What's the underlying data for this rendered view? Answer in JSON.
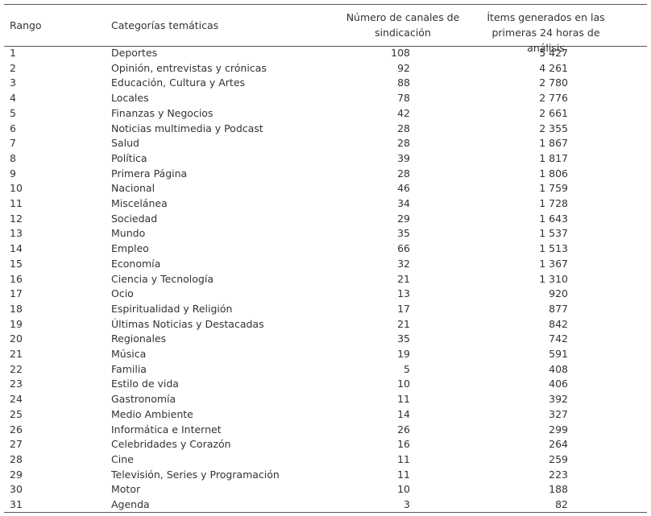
{
  "table": {
    "header": [
      "Rango",
      "Categorías temáticas",
      "Número de canales de sindicación",
      "Ítems generados en las primeras 24 horas de análisis"
    ],
    "rows": [
      [
        "1",
        "Deportes",
        "108",
        "5 427"
      ],
      [
        "2",
        "Opinión, entrevistas y crónicas",
        "92",
        "4 261"
      ],
      [
        "3",
        "Educación, Cultura y Artes",
        "88",
        "2 780"
      ],
      [
        "4",
        "Locales",
        "78",
        "2 776"
      ],
      [
        "5",
        "Finanzas y Negocios",
        "42",
        "2 661"
      ],
      [
        "6",
        "Noticias multimedia y Podcast",
        "28",
        "2 355"
      ],
      [
        "7",
        "Salud",
        "28",
        "1 867"
      ],
      [
        "8",
        "Política",
        "39",
        "1 817"
      ],
      [
        "9",
        "Primera Página",
        "28",
        "1 806"
      ],
      [
        "10",
        "Nacional",
        "46",
        "1 759"
      ],
      [
        "11",
        "Miscelánea",
        "34",
        "1 728"
      ],
      [
        "12",
        "Sociedad",
        "29",
        "1 643"
      ],
      [
        "13",
        "Mundo",
        "35",
        "1 537"
      ],
      [
        "14",
        "Empleo",
        "66",
        "1 513"
      ],
      [
        "15",
        "Economía",
        "32",
        "1 367"
      ],
      [
        "16",
        "Ciencia y Tecnología",
        "21",
        "1 310"
      ],
      [
        "17",
        "Ocio",
        "13",
        "920"
      ],
      [
        "18",
        "Espiritualidad y Religión",
        "17",
        "877"
      ],
      [
        "19",
        "Últimas Noticias y Destacadas",
        "21",
        "842"
      ],
      [
        "20",
        "Regionales",
        "35",
        "742"
      ],
      [
        "21",
        "Música",
        "19",
        "591"
      ],
      [
        "22",
        "Familia",
        "5",
        "408"
      ],
      [
        "23",
        "Estilo de vida",
        "10",
        "406"
      ],
      [
        "24",
        "Gastronomía",
        "11",
        "392"
      ],
      [
        "25",
        "Medio Ambiente",
        "14",
        "327"
      ],
      [
        "26",
        "Informática e Internet",
        "26",
        "299"
      ],
      [
        "27",
        "Celebridades y Corazón",
        "16",
        "264"
      ],
      [
        "28",
        "Cine",
        "11",
        "259"
      ],
      [
        "29",
        "Televisión, Series y Programación",
        "11",
        "223"
      ],
      [
        "30",
        "Motor",
        "10",
        "188"
      ],
      [
        "31",
        "Agenda",
        "3",
        "82"
      ]
    ]
  }
}
